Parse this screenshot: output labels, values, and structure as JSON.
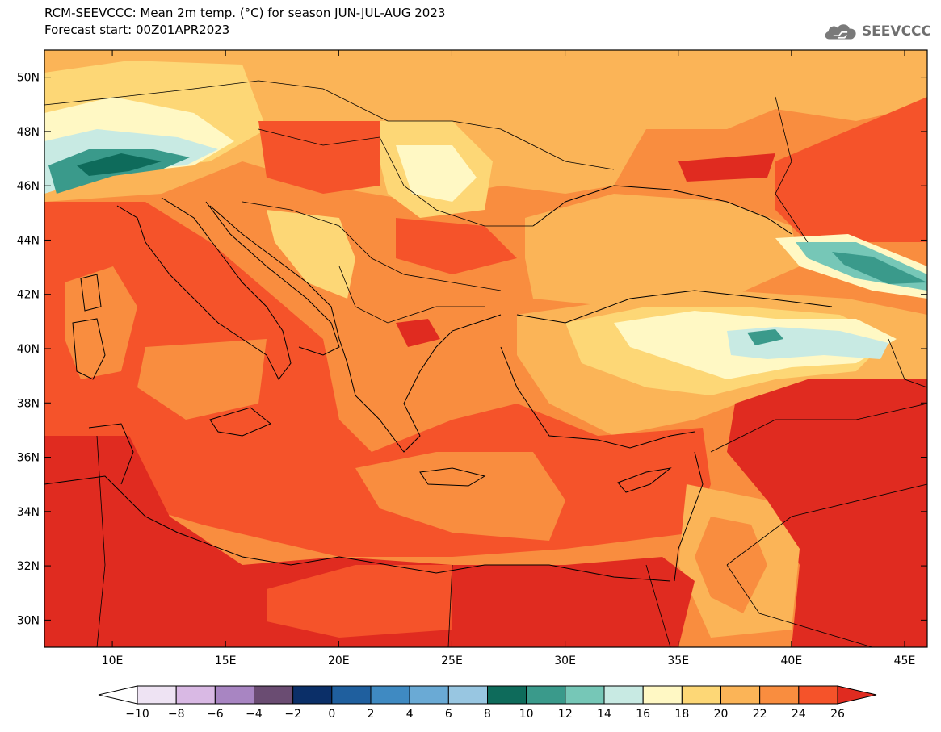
{
  "header": {
    "title": "RCM-SEEVCCC: Mean 2m temp. (°C) for season JUN-JUL-AUG 2023",
    "subtitle": "Forecast start: 00Z01APR2023"
  },
  "logo": {
    "text": "SEEVCCC",
    "icon": "cloud-icon"
  },
  "map": {
    "lat_labels": [
      "50N",
      "48N",
      "46N",
      "44N",
      "42N",
      "40N",
      "38N",
      "36N",
      "34N",
      "32N",
      "30N"
    ],
    "lat_values": [
      50,
      48,
      46,
      44,
      42,
      40,
      38,
      36,
      34,
      32,
      30
    ],
    "lon_labels": [
      "10E",
      "15E",
      "20E",
      "25E",
      "30E",
      "35E",
      "40E",
      "45E"
    ],
    "lon_values": [
      10,
      15,
      20,
      25,
      30,
      35,
      40,
      45
    ],
    "lon_range": [
      7,
      46
    ],
    "lat_range": [
      29,
      51
    ]
  },
  "colorbar": {
    "labels": [
      "-10",
      "-8",
      "-6",
      "-4",
      "-2",
      "0",
      "2",
      "4",
      "6",
      "8",
      "10",
      "12",
      "14",
      "16",
      "18",
      "20",
      "22",
      "24",
      "26"
    ],
    "colors": [
      "#ffffff",
      "#eee3f3",
      "#d9b9e4",
      "#a885c2",
      "#6a4c72",
      "#0b2f68",
      "#1f5f9e",
      "#3f8ac2",
      "#6aaad5",
      "#98c6e1",
      "#0e6b5b",
      "#3a9a8b",
      "#76c7b7",
      "#c8eae3",
      "#fff8c4",
      "#fdd776",
      "#fbb457",
      "#f98d3f",
      "#f5532a",
      "#e02b20"
    ]
  },
  "field_colors": {
    "t26": "#e02b20",
    "t24": "#f5532a",
    "t22": "#f98d3f",
    "t20": "#fbb457",
    "t18": "#fdd776",
    "t16": "#fff8c4",
    "t14": "#c8eae3",
    "t12": "#76c7b7",
    "t10": "#3a9a8b",
    "t8": "#0e6b5b"
  }
}
